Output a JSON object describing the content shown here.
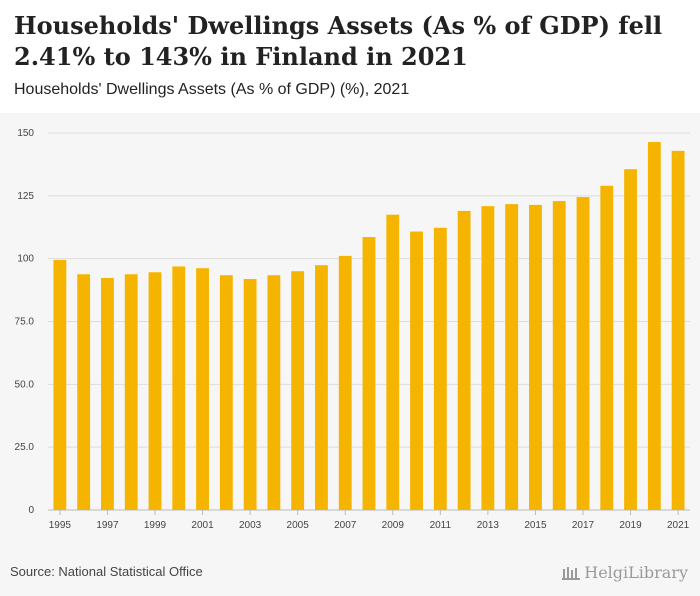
{
  "header": {
    "title": "Households' Dwellings Assets (As % of GDP) fell 2.41% to 143% in Finland in 2021",
    "subtitle": "Households' Dwellings Assets (As % of GDP) (%), 2021"
  },
  "footer": {
    "source": "Source: National Statistical Office",
    "brand": "HelgiLibrary"
  },
  "colors": {
    "bar": "#f5b400",
    "grid": "#dddddd",
    "background": "#f6f6f6"
  },
  "chart_data": {
    "type": "bar",
    "title": "Households' Dwellings Assets (As % of GDP) (%), 2021",
    "xlabel": "",
    "ylabel": "",
    "ylim": [
      0,
      150
    ],
    "yticks": [
      0,
      25,
      50,
      75,
      100,
      125,
      150
    ],
    "ytick_labels": [
      "0",
      "25.0",
      "50.0",
      "75.0",
      "100",
      "125",
      "150"
    ],
    "categories": [
      "1995",
      "1996",
      "1997",
      "1998",
      "1999",
      "2000",
      "2001",
      "2002",
      "2003",
      "2004",
      "2005",
      "2006",
      "2007",
      "2008",
      "2009",
      "2010",
      "2011",
      "2012",
      "2013",
      "2014",
      "2015",
      "2016",
      "2017",
      "2018",
      "2019",
      "2020",
      "2021"
    ],
    "xtick_labels": [
      "1995",
      "1997",
      "1999",
      "2001",
      "2003",
      "2005",
      "2007",
      "2009",
      "2011",
      "2013",
      "2015",
      "2017",
      "2019",
      "2021"
    ],
    "values": [
      99.5,
      93.8,
      92.3,
      93.8,
      94.6,
      96.9,
      96.2,
      93.4,
      91.9,
      93.4,
      95.0,
      97.4,
      101.1,
      108.6,
      117.5,
      110.8,
      112.3,
      119.0,
      120.9,
      121.7,
      121.4,
      122.9,
      124.5,
      129.0,
      135.6,
      146.4,
      142.9
    ],
    "grid": true
  }
}
